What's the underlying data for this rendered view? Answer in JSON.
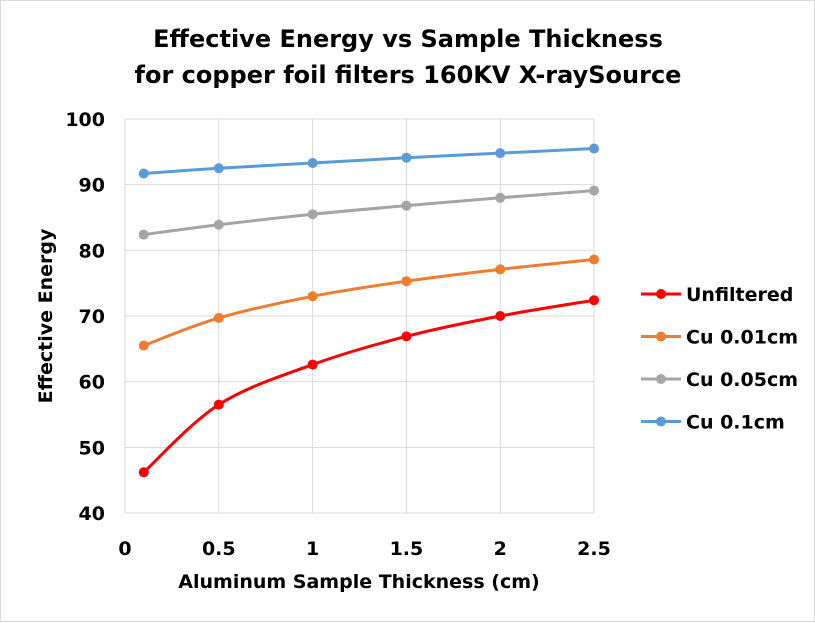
{
  "chart_data": {
    "type": "line",
    "title_line1": "Effective Energy vs Sample Thickness",
    "title_line2": "for copper foil filters 160KV X-raySource",
    "xlabel": "Aluminum Sample Thickness (cm)",
    "ylabel": "Effective Energy",
    "xlim": [
      0,
      2.5
    ],
    "ylim": [
      40,
      100
    ],
    "xticks": [
      0,
      0.5,
      1,
      1.5,
      2,
      2.5
    ],
    "xtick_labels": [
      "0",
      "0.5",
      "1",
      "1.5",
      "2",
      "2.5"
    ],
    "yticks": [
      40,
      50,
      60,
      70,
      80,
      90,
      100
    ],
    "ytick_labels": [
      "40",
      "50",
      "60",
      "70",
      "80",
      "90",
      "100"
    ],
    "grid": true,
    "legend_position": "right",
    "x": [
      0.1,
      0.5,
      1,
      1.5,
      2,
      2.5
    ],
    "series": [
      {
        "name": "Unfiltered",
        "color": "#ff0000",
        "values": [
          46.2,
          56.5,
          62.6,
          66.9,
          70.0,
          72.4
        ]
      },
      {
        "name": "Cu 0.01cm",
        "color": "#ed7d31",
        "values": [
          65.5,
          69.7,
          73.0,
          75.3,
          77.1,
          78.6
        ]
      },
      {
        "name": "Cu 0.05cm",
        "color": "#a5a5a5",
        "values": [
          82.4,
          83.9,
          85.5,
          86.8,
          88.0,
          89.1
        ]
      },
      {
        "name": "Cu 0.1cm",
        "color": "#5b9bd5",
        "values": [
          91.7,
          92.5,
          93.3,
          94.1,
          94.8,
          95.5
        ]
      }
    ]
  }
}
